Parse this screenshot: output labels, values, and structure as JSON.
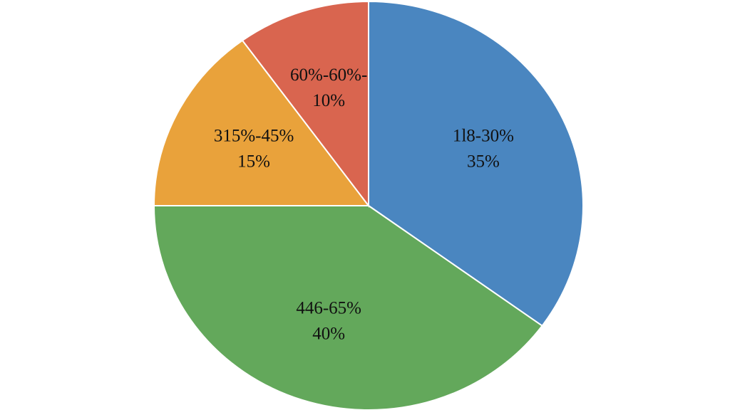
{
  "chart_data": {
    "type": "pie",
    "categories": [
      "1l8-30%",
      "446-65%",
      "315%-45%",
      "60%-60%-"
    ],
    "values": [
      35,
      40,
      15,
      10
    ],
    "value_labels": [
      "35%",
      "40%",
      "15%",
      "10%"
    ],
    "colors": [
      "#4a86c0",
      "#63a85b",
      "#e9a23b",
      "#d9654f"
    ]
  }
}
